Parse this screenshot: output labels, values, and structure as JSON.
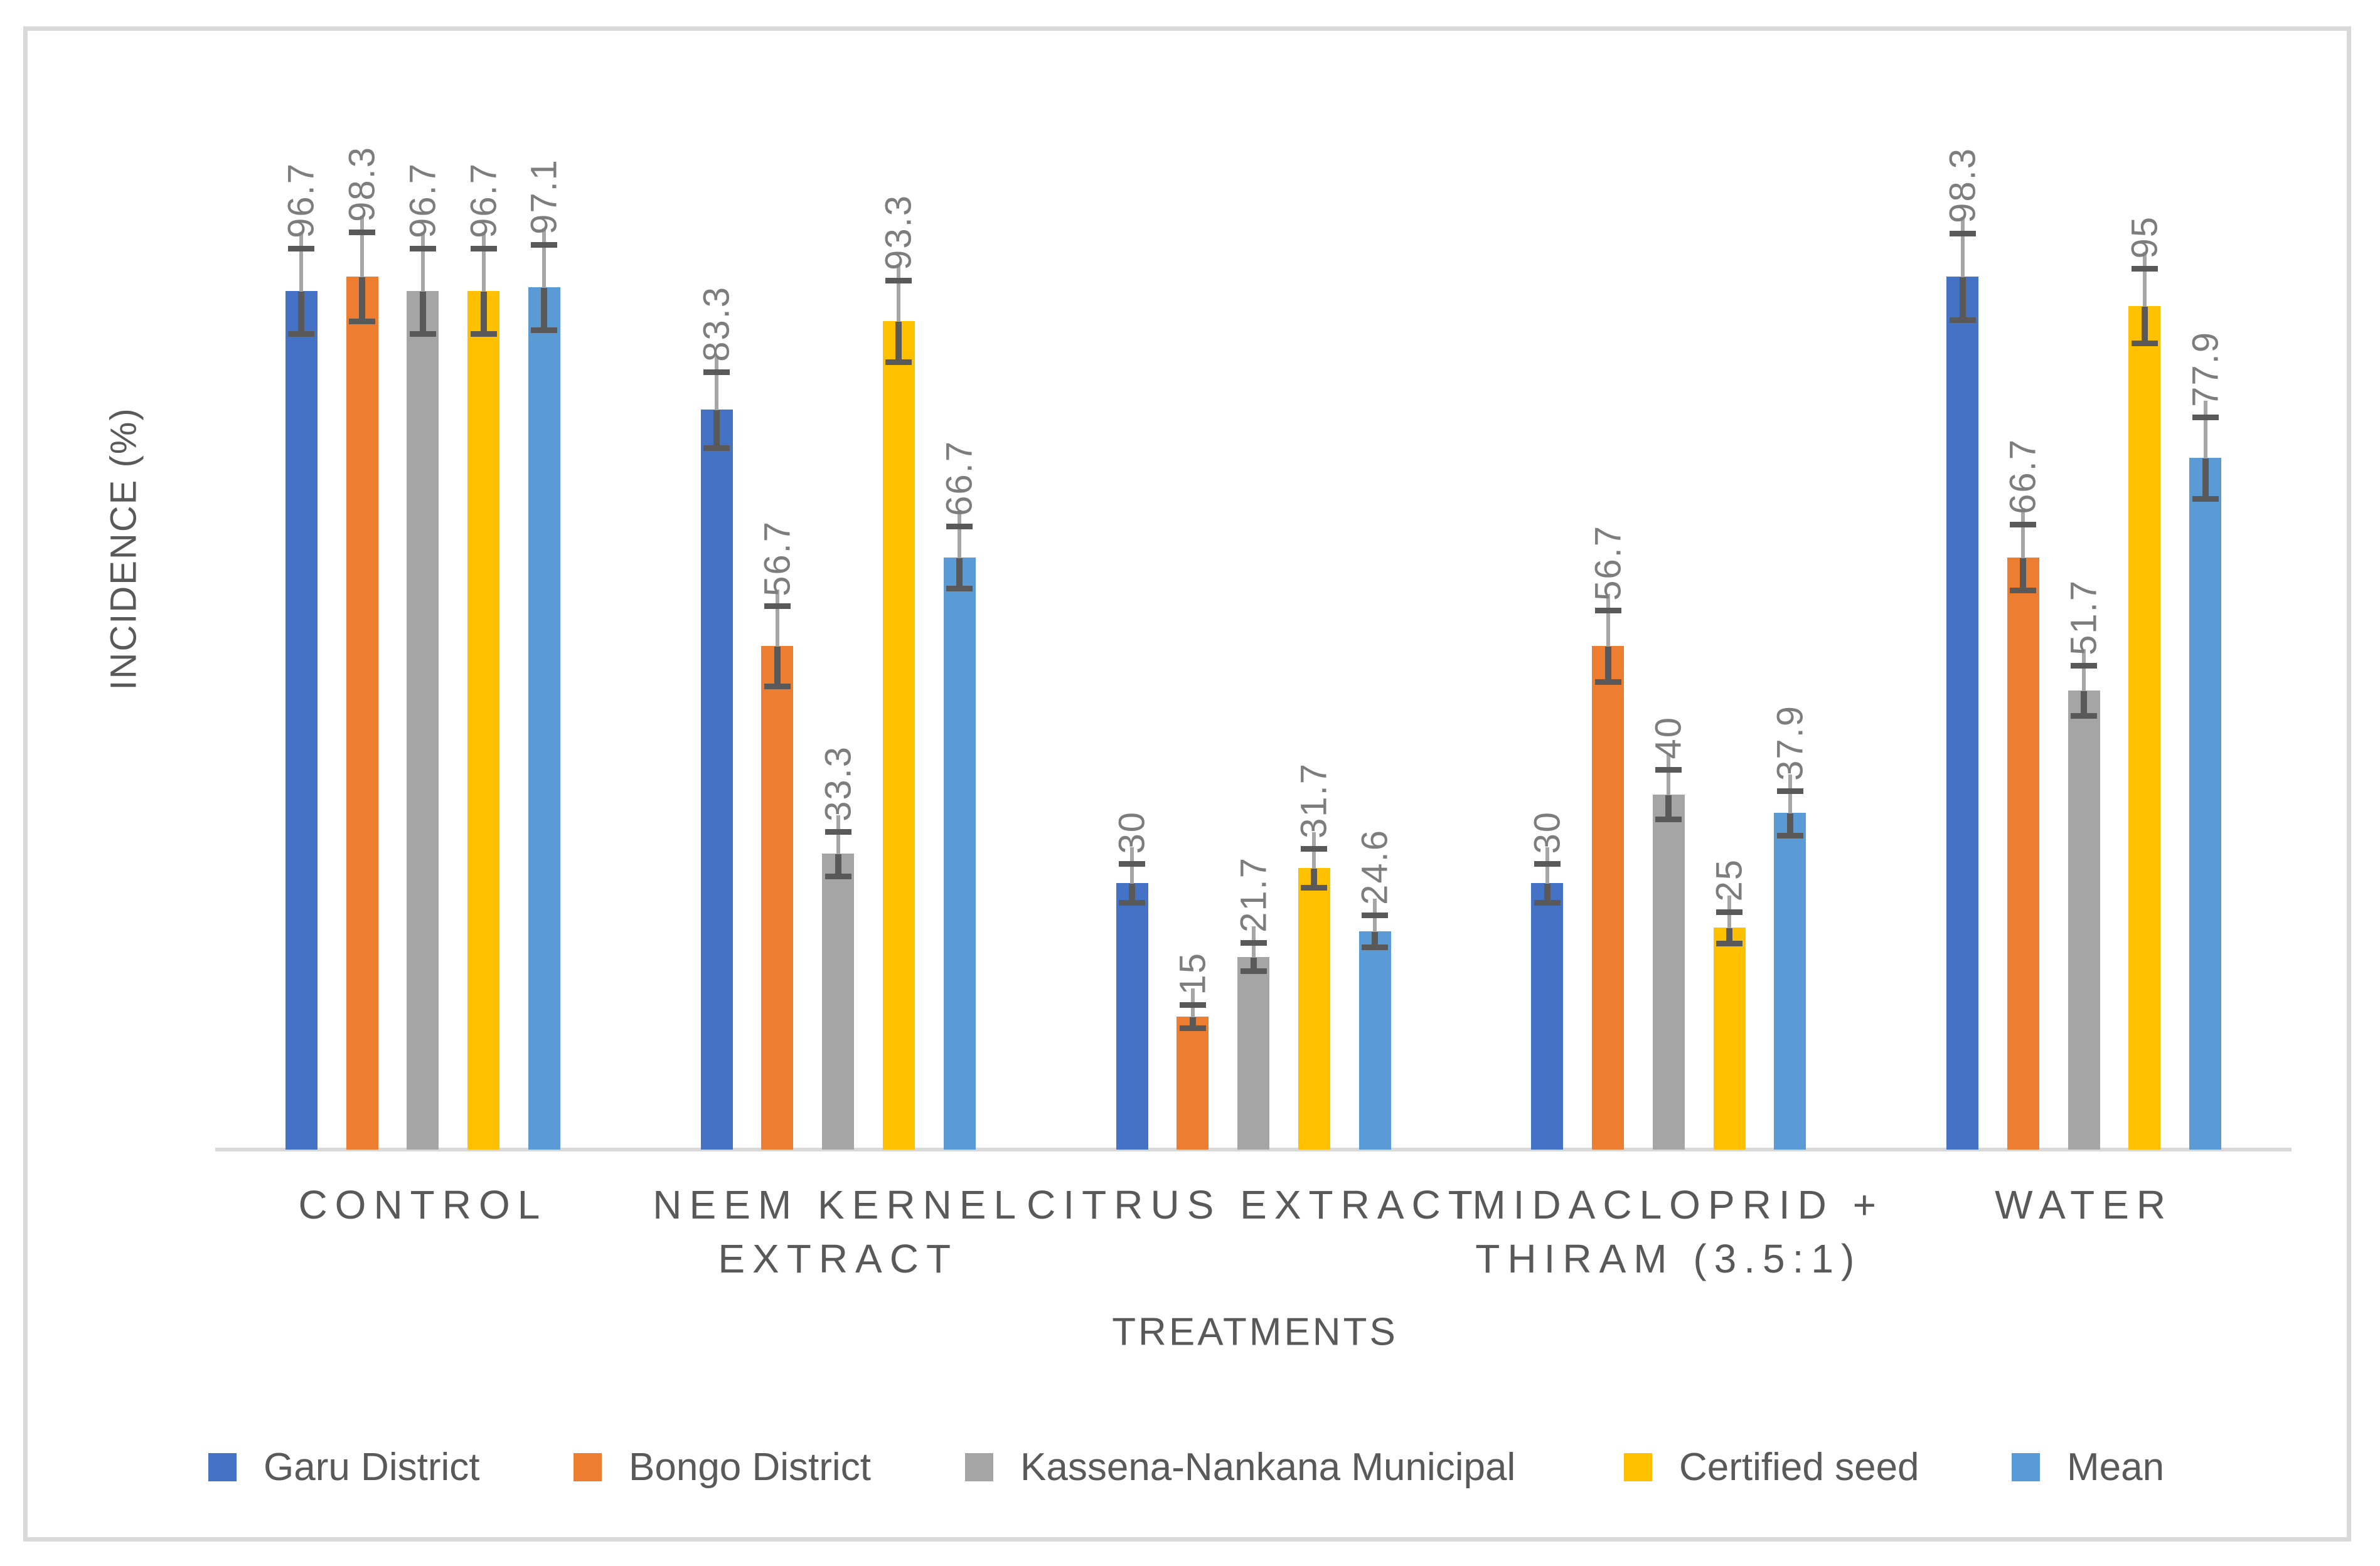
{
  "chart_data": {
    "type": "bar",
    "title": "",
    "xlabel": "TREATMENTS",
    "ylabel": "INCIDENCE (%)",
    "ylim": [
      0,
      100
    ],
    "grid": false,
    "legend_position": "bottom",
    "error_bars": true,
    "data_labels_rotated_up": true,
    "categories": [
      "CONTROL",
      "NEEM KERNEL EXTRACT",
      "CITRUS EXTRACT",
      "IMIDACLOPRID + THIRAM (3.5:1)",
      "WATER"
    ],
    "category_lines": [
      [
        "CONTROL"
      ],
      [
        "NEEM KERNEL",
        "EXTRACT"
      ],
      [
        "CITRUS EXTRACT"
      ],
      [
        "IMIDACLOPRID +",
        "THIRAM (3.5:1)"
      ],
      [
        "WATER"
      ]
    ],
    "series": [
      {
        "name": "Garu District",
        "color": "#4472C4",
        "values": [
          96.7,
          83.3,
          30,
          30,
          98.3
        ],
        "errors": [
          4.8,
          4.3,
          2.2,
          2.2,
          4.9
        ]
      },
      {
        "name": "Bongo District",
        "color": "#ED7D31",
        "values": [
          98.3,
          56.7,
          15,
          56.7,
          66.7
        ],
        "errors": [
          5.0,
          4.5,
          1.3,
          4.0,
          3.7
        ]
      },
      {
        "name": "Kassena-Nankana Municipal",
        "color": "#A5A5A5",
        "values": [
          96.7,
          33.3,
          21.7,
          40,
          51.7
        ],
        "errors": [
          4.8,
          2.5,
          1.6,
          2.8,
          2.8
        ]
      },
      {
        "name": "Certified seed",
        "color": "#FFC000",
        "values": [
          96.7,
          93.3,
          31.7,
          25,
          95
        ],
        "errors": [
          4.8,
          4.6,
          2.2,
          1.8,
          4.2
        ]
      },
      {
        "name": "Mean",
        "color": "#5B9BD5",
        "values": [
          97.1,
          66.7,
          24.6,
          37.9,
          77.9
        ],
        "errors": [
          4.8,
          3.5,
          1.8,
          2.5,
          4.6
        ]
      }
    ]
  },
  "style": {
    "background": "#FFFFFF",
    "frame_border_color": "#D9D9D9",
    "axis_line_color": "#D9D9D9",
    "axis_text_color": "#595959",
    "data_label_color": "#7D7D7D",
    "error_bar_dark_color": "#595959",
    "error_bar_light_color": "#A6A6A6"
  }
}
